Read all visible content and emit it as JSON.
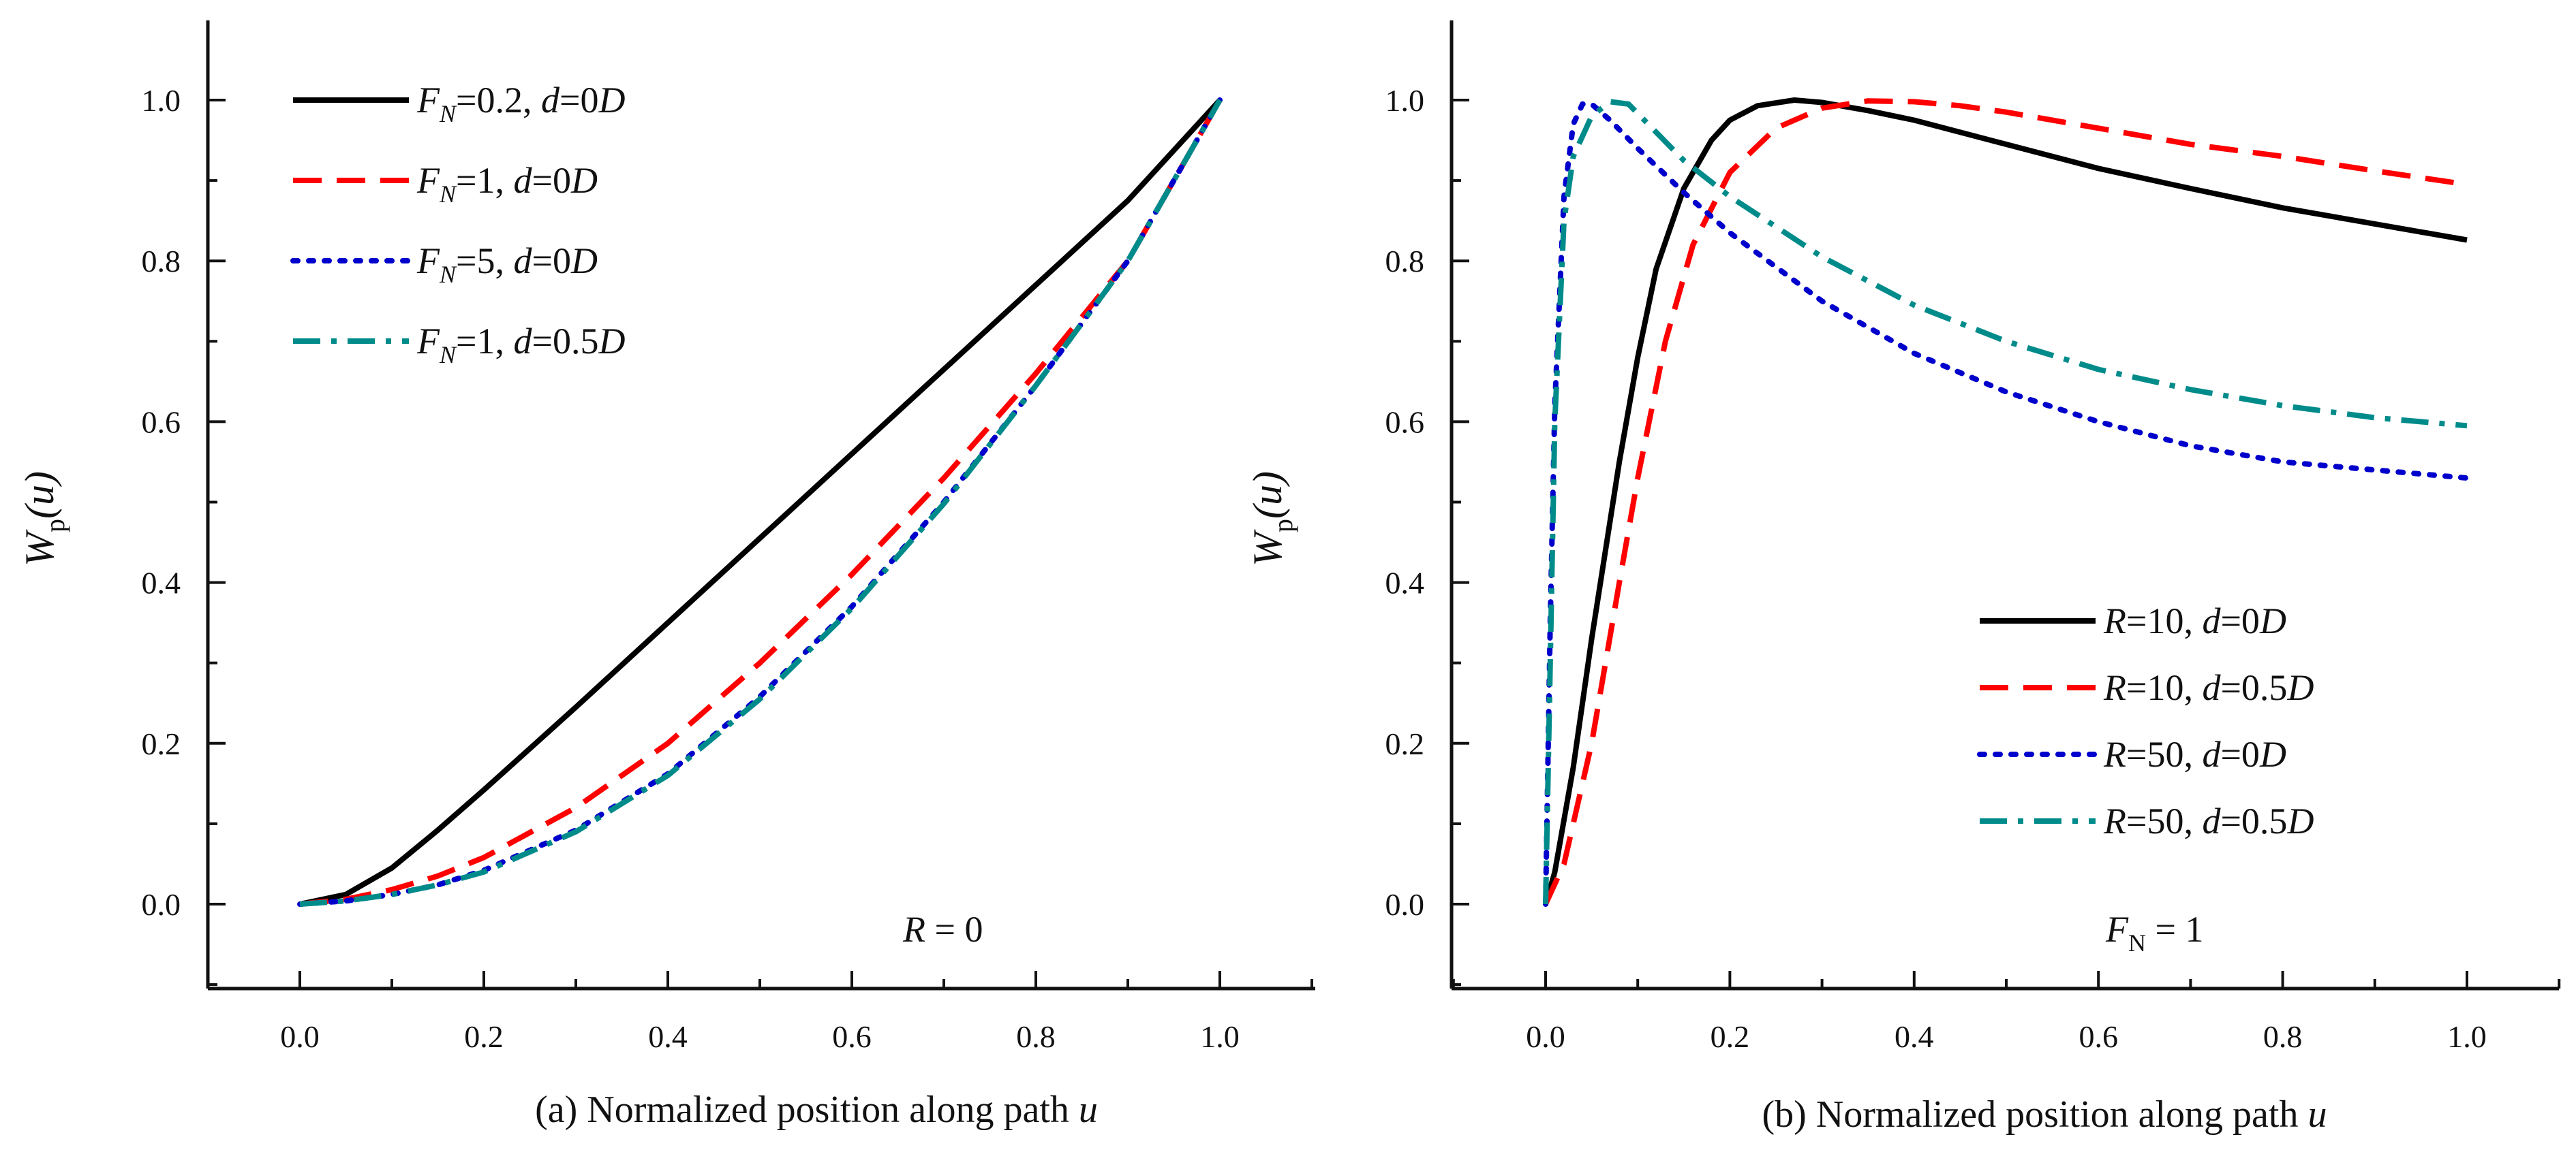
{
  "chart_data": [
    {
      "type": "line",
      "panel": "a",
      "xlabel_prefix": "(a) Normalized position along path ",
      "xlabel_var": "u",
      "ylabel_main": "W",
      "ylabel_sub": "p",
      "ylabel_arg": "(u)",
      "annotation": {
        "var": "R",
        "text": " = 0"
      },
      "xlim": [
        -0.1,
        1.1
      ],
      "ylim": [
        -0.1,
        1.1
      ],
      "xticks": [
        "0.0",
        "0.2",
        "0.4",
        "0.6",
        "0.8",
        "1.0"
      ],
      "yticks": [
        "0.0",
        "0.2",
        "0.4",
        "0.6",
        "0.8",
        "1.0"
      ],
      "legend_position": "top-left",
      "series": [
        {
          "name": "F_N=0.2, d=0D",
          "legend": {
            "v1": "F",
            "s1": "N",
            "t1": "=0.2, ",
            "v2": "d",
            "t2": "=0",
            "v3": "D"
          },
          "color": "#000000",
          "dash": "solid",
          "x": [
            0,
            0.05,
            0.1,
            0.15,
            0.2,
            0.3,
            0.4,
            0.5,
            0.6,
            0.7,
            0.8,
            0.9,
            1.0
          ],
          "y": [
            0,
            0.012,
            0.045,
            0.092,
            0.142,
            0.245,
            0.35,
            0.455,
            0.56,
            0.665,
            0.77,
            0.875,
            1.0
          ]
        },
        {
          "name": "F_N=1, d=0D",
          "legend": {
            "v1": "F",
            "s1": "N",
            "t1": "=1, ",
            "v2": "d",
            "t2": "=0",
            "v3": "D"
          },
          "color": "#ff0000",
          "dash": "dashed",
          "x": [
            0,
            0.05,
            0.1,
            0.15,
            0.2,
            0.3,
            0.4,
            0.5,
            0.6,
            0.7,
            0.8,
            0.9,
            1.0
          ],
          "y": [
            0,
            0.006,
            0.018,
            0.035,
            0.058,
            0.12,
            0.2,
            0.3,
            0.41,
            0.53,
            0.66,
            0.8,
            1.0
          ]
        },
        {
          "name": "F_N=5, d=0D",
          "legend": {
            "v1": "F",
            "s1": "N",
            "t1": "=5, ",
            "v2": "d",
            "t2": "=0",
            "v3": "D"
          },
          "color": "#0000cc",
          "dash": "dotted",
          "x": [
            0,
            0.05,
            0.1,
            0.15,
            0.2,
            0.3,
            0.4,
            0.5,
            0.6,
            0.7,
            0.8,
            0.9,
            1.0
          ],
          "y": [
            0,
            0.004,
            0.012,
            0.024,
            0.042,
            0.092,
            0.162,
            0.258,
            0.37,
            0.5,
            0.645,
            0.8,
            1.0
          ]
        },
        {
          "name": "F_N=1, d=0.5D",
          "legend": {
            "v1": "F",
            "s1": "N",
            "t1": "=1, ",
            "v2": "d",
            "t2": "=0.5",
            "v3": "D"
          },
          "color": "#008b8b",
          "dash": "dashdot",
          "x": [
            0,
            0.05,
            0.1,
            0.15,
            0.2,
            0.3,
            0.4,
            0.5,
            0.6,
            0.7,
            0.8,
            0.9,
            1.0
          ],
          "y": [
            0,
            0.004,
            0.012,
            0.024,
            0.04,
            0.09,
            0.16,
            0.255,
            0.368,
            0.498,
            0.645,
            0.8,
            1.0
          ]
        }
      ]
    },
    {
      "type": "line",
      "panel": "b",
      "xlabel_prefix": "(b) Normalized position along path ",
      "xlabel_var": "u",
      "ylabel_main": "W",
      "ylabel_sub": "p",
      "ylabel_arg": "(u)",
      "annotation": {
        "var": "F",
        "sub": "N",
        "text": " = 1"
      },
      "xlim": [
        -0.1,
        1.1
      ],
      "ylim": [
        -0.1,
        1.1
      ],
      "xticks": [
        "0.0",
        "0.2",
        "0.4",
        "0.6",
        "0.8",
        "1.0"
      ],
      "yticks": [
        "0.0",
        "0.2",
        "0.4",
        "0.6",
        "0.8",
        "1.0"
      ],
      "legend_position": "center-right",
      "series": [
        {
          "name": "R=10, d=0D",
          "legend": {
            "v1": "R",
            "s1": "",
            "t1": "=10, ",
            "v2": "d",
            "t2": "=0",
            "v3": "D"
          },
          "color": "#000000",
          "dash": "solid",
          "x": [
            0,
            0.01,
            0.03,
            0.05,
            0.08,
            0.1,
            0.12,
            0.15,
            0.18,
            0.2,
            0.23,
            0.27,
            0.3,
            0.35,
            0.4,
            0.5,
            0.6,
            0.7,
            0.8,
            0.9,
            1.0
          ],
          "y": [
            0,
            0.04,
            0.17,
            0.33,
            0.55,
            0.68,
            0.79,
            0.89,
            0.95,
            0.975,
            0.993,
            1.0,
            0.997,
            0.987,
            0.975,
            0.945,
            0.915,
            0.89,
            0.866,
            0.846,
            0.826
          ]
        },
        {
          "name": "R=10, d=0.5D",
          "legend": {
            "v1": "R",
            "s1": "",
            "t1": "=10, ",
            "v2": "d",
            "t2": "=0.5",
            "v3": "D"
          },
          "color": "#ff0000",
          "dash": "dashed",
          "x": [
            0,
            0.02,
            0.05,
            0.08,
            0.1,
            0.13,
            0.16,
            0.2,
            0.25,
            0.3,
            0.35,
            0.4,
            0.45,
            0.5,
            0.6,
            0.7,
            0.8,
            0.9,
            1.0
          ],
          "y": [
            0,
            0.05,
            0.2,
            0.4,
            0.53,
            0.7,
            0.82,
            0.91,
            0.965,
            0.99,
            0.999,
            0.998,
            0.993,
            0.985,
            0.965,
            0.945,
            0.93,
            0.912,
            0.895
          ]
        },
        {
          "name": "R=50, d=0D",
          "legend": {
            "v1": "R",
            "s1": "",
            "t1": "=50, ",
            "v2": "d",
            "t2": "=0",
            "v3": "D"
          },
          "color": "#0000cc",
          "dash": "dotted",
          "x": [
            0,
            0.005,
            0.01,
            0.02,
            0.03,
            0.04,
            0.05,
            0.07,
            0.1,
            0.15,
            0.2,
            0.3,
            0.4,
            0.5,
            0.6,
            0.7,
            0.8,
            0.9,
            1.0
          ],
          "y": [
            0,
            0.35,
            0.62,
            0.88,
            0.97,
            0.995,
            0.995,
            0.975,
            0.94,
            0.885,
            0.835,
            0.75,
            0.685,
            0.637,
            0.6,
            0.57,
            0.55,
            0.54,
            0.53
          ]
        },
        {
          "name": "R=50, d=0.5D",
          "legend": {
            "v1": "R",
            "s1": "",
            "t1": "=50, ",
            "v2": "d",
            "t2": "=0.5",
            "v3": "D"
          },
          "color": "#008b8b",
          "dash": "dashdot",
          "x": [
            0,
            0.005,
            0.01,
            0.02,
            0.03,
            0.05,
            0.07,
            0.09,
            0.12,
            0.15,
            0.2,
            0.3,
            0.4,
            0.5,
            0.6,
            0.7,
            0.8,
            0.9,
            1.0
          ],
          "y": [
            0,
            0.3,
            0.6,
            0.85,
            0.93,
            0.98,
            0.998,
            0.995,
            0.96,
            0.925,
            0.88,
            0.805,
            0.745,
            0.7,
            0.665,
            0.64,
            0.62,
            0.605,
            0.595
          ]
        }
      ]
    }
  ]
}
